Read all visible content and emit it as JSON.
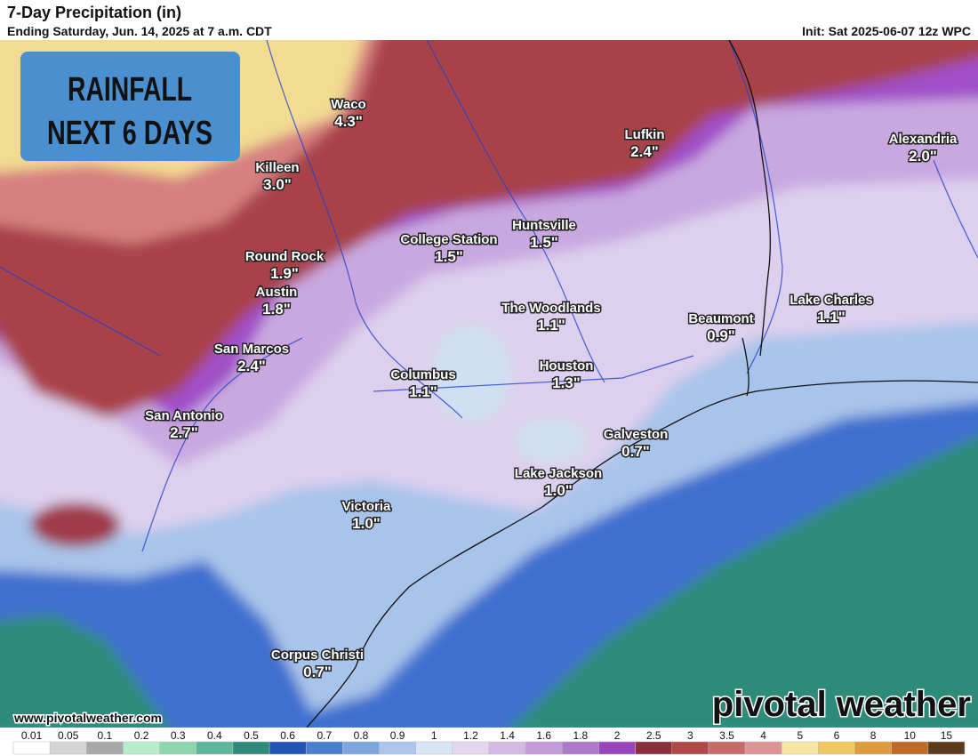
{
  "header": {
    "title": "7-Day Precipitation (in)",
    "subtitle": "Ending Saturday, Jun. 14, 2025 at 7 a.m. CDT",
    "init": "Init: Sat 2025-06-07 12z WPC"
  },
  "badge": {
    "lines": [
      "RAINFALL",
      "NEXT 6 DAYS"
    ]
  },
  "cities": [
    {
      "name": "Waco",
      "amount": "4.3\""
    },
    {
      "name": "Killeen",
      "amount": "3.0\""
    },
    {
      "name": "Lufkin",
      "amount": "2.4\""
    },
    {
      "name": "Alexandria",
      "amount": "2.0\""
    },
    {
      "name": "Huntsville",
      "amount": "1.5\""
    },
    {
      "name": "College Station",
      "amount": "1.5\""
    },
    {
      "name": "Round Rock",
      "amount": "1.9\""
    },
    {
      "name": "Austin",
      "amount": "1.8\""
    },
    {
      "name": "The Woodlands",
      "amount": "1.1\""
    },
    {
      "name": "Lake Charles",
      "amount": "1.1\""
    },
    {
      "name": "Beaumont",
      "amount": "0.9\""
    },
    {
      "name": "San Marcos",
      "amount": "2.4\""
    },
    {
      "name": "Columbus",
      "amount": "1.1\""
    },
    {
      "name": "Houston",
      "amount": "1.3\""
    },
    {
      "name": "San Antonio",
      "amount": "2.7\""
    },
    {
      "name": "Galveston",
      "amount": "0.7\""
    },
    {
      "name": "Lake Jackson",
      "amount": "1.0\""
    },
    {
      "name": "Victoria",
      "amount": "1.0\""
    },
    {
      "name": "Corpus Christi",
      "amount": "0.7\""
    }
  ],
  "watermark": "www.pivotalweather.com",
  "logo": "pivotal weather",
  "colorbar": {
    "labels": [
      0.01,
      0.05,
      0.1,
      0.2,
      0.3,
      0.4,
      0.5,
      0.6,
      0.7,
      0.8,
      0.9,
      1,
      1.2,
      1.4,
      1.6,
      1.8,
      2,
      2.5,
      3,
      3.5,
      4,
      5,
      6,
      8,
      10,
      15
    ],
    "colors": [
      "#ffffff",
      "#d4d4d4",
      "#a8a8a8",
      "#b9ecc8",
      "#8fd6ae",
      "#5cb89b",
      "#2e8b7a",
      "#1f55b8",
      "#4a7fd0",
      "#7da5de",
      "#abc6ea",
      "#d6e6f5",
      "#e4d6ee",
      "#d3b9e3",
      "#c29bd8",
      "#ad7acb",
      "#9a45bf",
      "#8c2f3c",
      "#b04848",
      "#c86a6a",
      "#de9494",
      "#f5e6a4",
      "#f0c860",
      "#e09a3c",
      "#c06a28",
      "#5c3a1c"
    ]
  }
}
